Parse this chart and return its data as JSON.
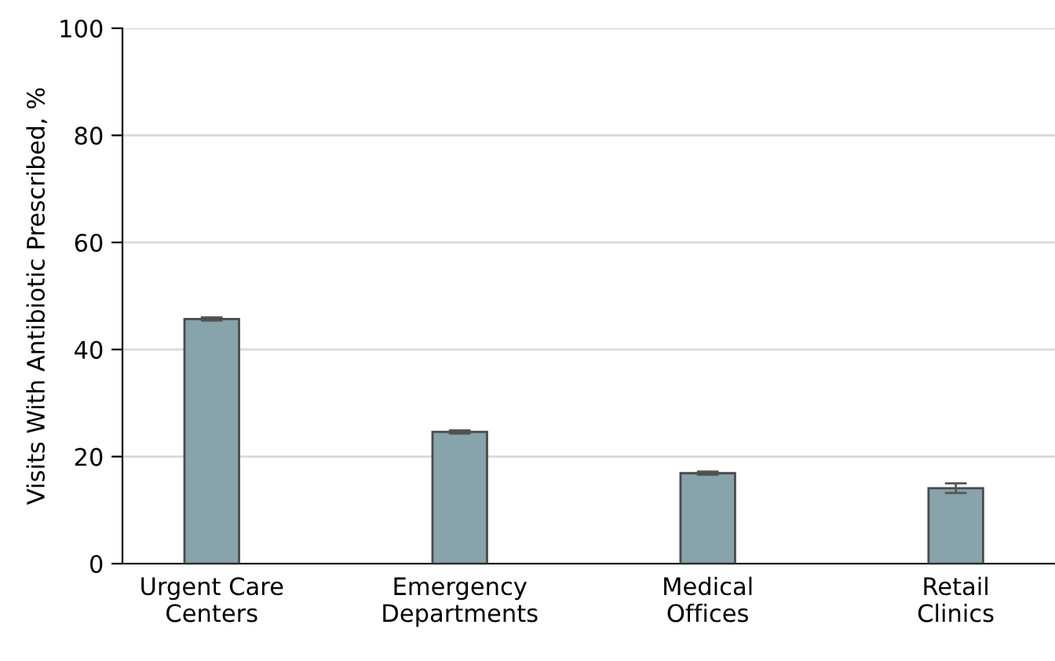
{
  "chart_data": {
    "type": "bar",
    "ylabel": "Visits With Antibiotic Prescribed, %",
    "categories": [
      "Urgent Care\nCenters",
      "Emergency\nDepartments",
      "Medical\nOffices",
      "Retail\nClinics"
    ],
    "values": [
      45.7,
      24.6,
      16.9,
      14.1
    ],
    "errors": [
      0.3,
      0.3,
      0.3,
      0.9
    ],
    "color": "#87a3ab",
    "ylim": [
      0,
      100
    ],
    "yticks": [
      0,
      20,
      40,
      60,
      80,
      100
    ],
    "grid": "y"
  }
}
